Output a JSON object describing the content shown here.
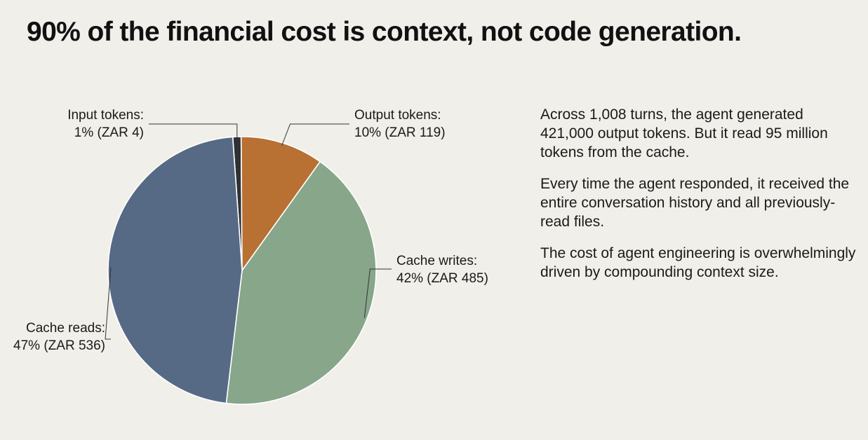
{
  "title": "90% of the financial cost is context, not code generation.",
  "chart_data": {
    "type": "pie",
    "title": "",
    "start_angle_deg": -4,
    "direction": "clockwise",
    "slices": [
      {
        "name": "Input tokens",
        "percent": 1,
        "value": 4,
        "label_lines": [
          "Input tokens:",
          "1% (ZAR 4)"
        ],
        "color": "#2f3133"
      },
      {
        "name": "Output tokens",
        "percent": 10,
        "value": 119,
        "label_lines": [
          "Output tokens:",
          "10% (ZAR 119)"
        ],
        "color": "#b87033"
      },
      {
        "name": "Cache writes",
        "percent": 42,
        "value": 485,
        "label_lines": [
          "Cache writes:",
          "42% (ZAR 485)"
        ],
        "color": "#87a68a"
      },
      {
        "name": "Cache reads",
        "percent": 47,
        "value": 536,
        "label_lines": [
          "Cache reads:",
          "47% (ZAR 536)"
        ],
        "color": "#566a86"
      }
    ]
  },
  "side_text": {
    "p1": "Across 1,008 turns, the agent generated 421,000 output tokens. But it read 95 million tokens from the cache.",
    "p2": "Every time the agent responded, it received the entire conversation history and all previously-read files.",
    "p3": "The cost of agent engineering is overwhelmingly driven by compounding context size."
  }
}
